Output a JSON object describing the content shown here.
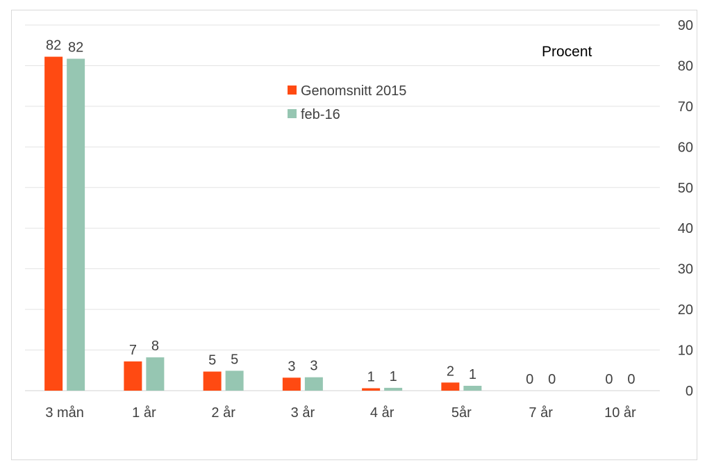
{
  "chart_data": {
    "type": "bar",
    "unit_label": "Procent",
    "categories": [
      "3 mån",
      "1 år",
      "2 år",
      "3 år",
      "4 år",
      "5år",
      "7 år",
      "10 år"
    ],
    "series": [
      {
        "name": "Genomsnitt 2015",
        "color": "#ff4a12",
        "values": [
          82.2,
          7.2,
          4.7,
          3.2,
          0.6,
          2.0,
          0,
          0
        ],
        "labels": [
          "82",
          "7",
          "5",
          "3",
          "1",
          "2",
          "0",
          "0"
        ]
      },
      {
        "name": "feb-16",
        "color": "#96c6b2",
        "values": [
          81.7,
          8.2,
          4.9,
          3.3,
          0.7,
          1.2,
          0,
          0
        ],
        "labels": [
          "82",
          "8",
          "5",
          "3",
          "1",
          "1",
          "0",
          "0"
        ]
      }
    ],
    "y_axis": {
      "position": "right",
      "min": 0,
      "max": 90,
      "step": 10,
      "ticks": [
        "0",
        "10",
        "20",
        "30",
        "40",
        "50",
        "60",
        "70",
        "80",
        "90"
      ]
    },
    "grid": true,
    "legend_position": "top-center"
  }
}
